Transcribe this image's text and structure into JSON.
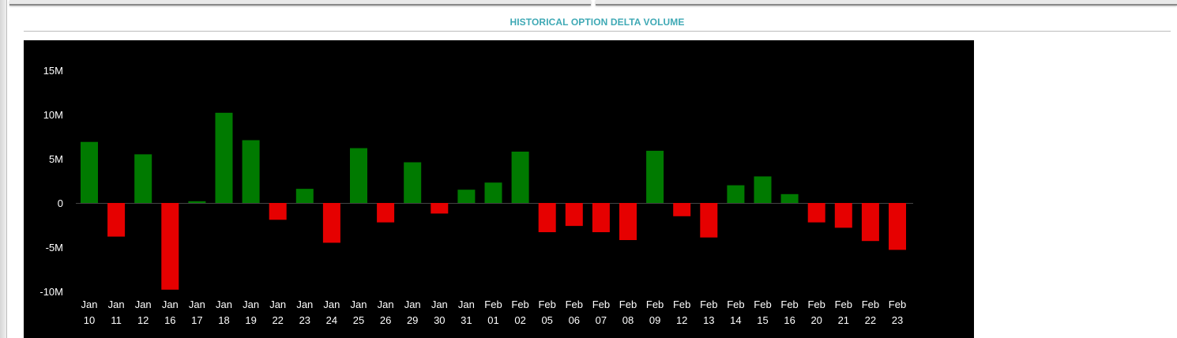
{
  "section": {
    "title": "HISTORICAL OPTION DELTA VOLUME"
  },
  "chart_data": {
    "type": "bar",
    "title": "HISTORICAL OPTION DELTA VOLUME",
    "xlabel": "",
    "ylabel": "",
    "ylim": [
      -10,
      15
    ],
    "y_unit": "millions",
    "yticks": [
      15,
      10,
      5,
      0,
      -5,
      -10
    ],
    "ytick_labels": [
      "15M",
      "10M",
      "5M",
      "0",
      "-5M",
      "-10M"
    ],
    "grid": false,
    "colors": {
      "positive": "#007a00",
      "negative": "#e60000",
      "background": "#000000",
      "zero_line": "#444444"
    },
    "categories": [
      "Jan 10",
      "Jan 11",
      "Jan 12",
      "Jan 16",
      "Jan 17",
      "Jan 18",
      "Jan 19",
      "Jan 22",
      "Jan 23",
      "Jan 24",
      "Jan 25",
      "Jan 26",
      "Jan 29",
      "Jan 30",
      "Jan 31",
      "Feb 01",
      "Feb 02",
      "Feb 05",
      "Feb 06",
      "Feb 07",
      "Feb 08",
      "Feb 09",
      "Feb 12",
      "Feb 13",
      "Feb 14",
      "Feb 15",
      "Feb 16",
      "Feb 20",
      "Feb 21",
      "Feb 22",
      "Feb 23"
    ],
    "values": [
      6.9,
      -3.8,
      5.5,
      -9.8,
      0.2,
      10.2,
      7.1,
      -1.9,
      1.6,
      -4.5,
      6.2,
      -2.2,
      4.6,
      -1.2,
      1.5,
      2.3,
      5.8,
      -3.3,
      -2.6,
      -3.3,
      -4.2,
      5.9,
      -1.5,
      -3.9,
      2.0,
      3.0,
      1.0,
      -2.2,
      -2.8,
      -4.3,
      -5.3
    ]
  }
}
